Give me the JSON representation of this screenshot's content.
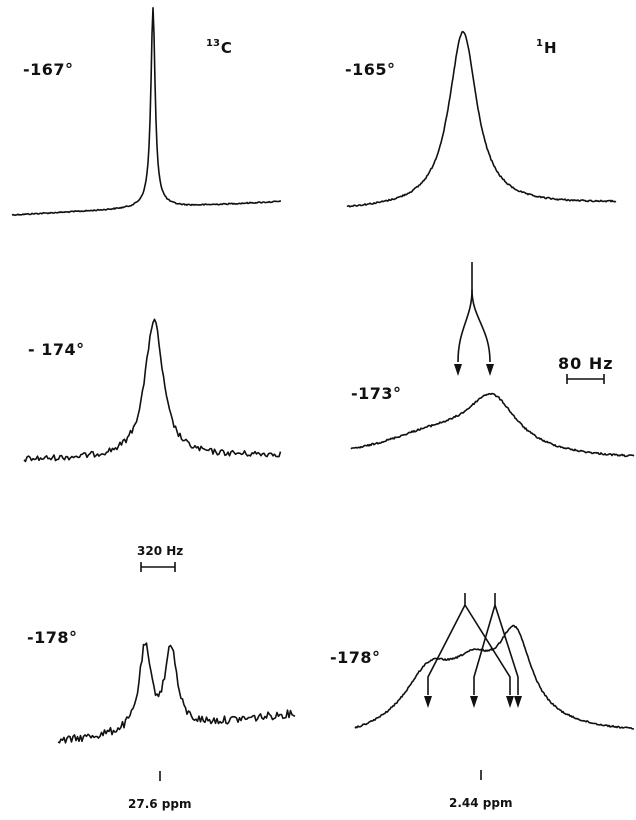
{
  "nuclei": {
    "left": {
      "mass": "13",
      "symbol": "C"
    },
    "right": {
      "mass": "1",
      "symbol": "H"
    }
  },
  "carbon_panel": {
    "temperatures": [
      "-167°",
      "- 174°",
      "-178°"
    ],
    "scale_bar_label": "320 Hz",
    "reference_label": "27.6 ppm"
  },
  "proton_panel": {
    "temperatures": [
      "-165°",
      "-173°",
      "-178°"
    ],
    "scale_bar_label": "80 Hz",
    "reference_label": "2.44 ppm"
  }
}
